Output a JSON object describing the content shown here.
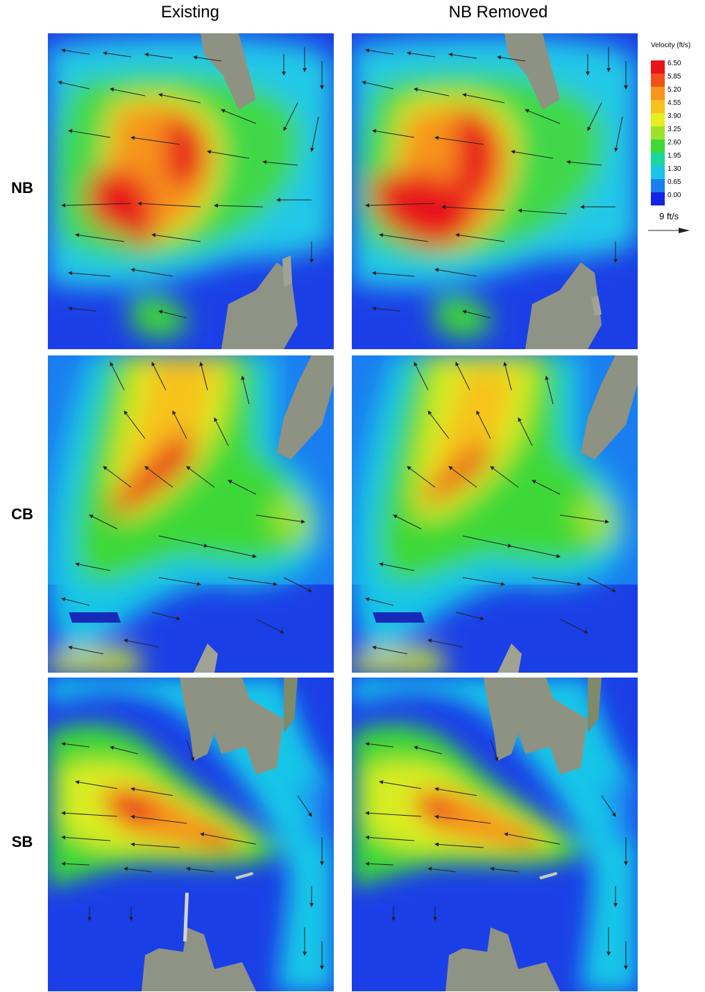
{
  "columns": [
    "Existing",
    "NB Removed"
  ],
  "rows": [
    "NB",
    "CB",
    "SB"
  ],
  "legend": {
    "title": "Velocity (ft/s)",
    "values": [
      "6.50",
      "5.85",
      "5.20",
      "4.55",
      "3.90",
      "3.25",
      "2.60",
      "1.95",
      "1.30",
      "0.65",
      "0.00"
    ],
    "colors": [
      "#e8141a",
      "#f2501a",
      "#f7941d",
      "#f7c21b",
      "#e6ee1f",
      "#9ce22a",
      "#3ed838",
      "#1cd6a0",
      "#19c6e8",
      "#1b7ef0",
      "#1424e4"
    ]
  },
  "scale_arrow": {
    "label": "9 ft/s"
  },
  "panels": [
    {
      "name": "nb-existing",
      "row": "NB",
      "column": "Existing"
    },
    {
      "name": "nb-removed",
      "row": "NB",
      "column": "NB Removed"
    },
    {
      "name": "cb-existing",
      "row": "CB",
      "column": "Existing"
    },
    {
      "name": "cb-removed",
      "row": "CB",
      "column": "NB Removed"
    },
    {
      "name": "sb-existing",
      "row": "SB",
      "column": "Existing"
    },
    {
      "name": "sb-removed",
      "row": "SB",
      "column": "NB Removed"
    }
  ]
}
